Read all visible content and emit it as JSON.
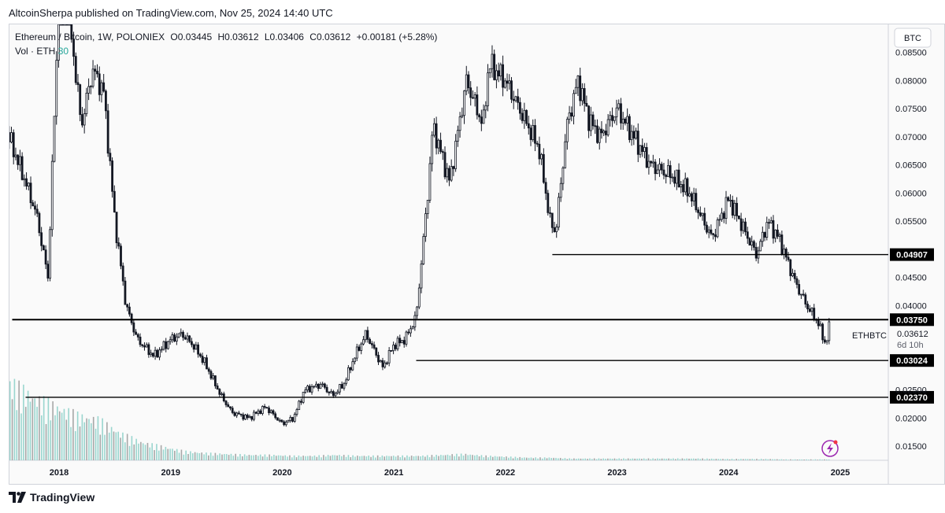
{
  "header": {
    "published_by": "AltcoinSherpa published on TradingView.com, Nov 25, 2024 14:40 UTC"
  },
  "legend": {
    "symbol": "Ethereum / Bitcoin, 1W, POLONIEX",
    "open": "O0.03445",
    "high": "H0.03612",
    "low": "L0.03406",
    "close": "C0.03612",
    "change": "+0.00181 (+5.28%)",
    "volume_label": "Vol · ETH",
    "volume_value": "30"
  },
  "footer": {
    "brand": "TradingView"
  },
  "colors": {
    "candle": "#131722",
    "volume": "#9ad6cf",
    "line": "#000000",
    "label_bg": "#000000",
    "scale_text": "#131722",
    "lightning": "#9c27b0"
  },
  "chart_data": {
    "type": "line",
    "title": "Ethereum / Bitcoin, 1W, POLONIEX",
    "ylim": [
      0.0125,
      0.09
    ],
    "y_unit_badge": "BTC",
    "y_ticks": [
      "0.08500",
      "0.08000",
      "0.07500",
      "0.07000",
      "0.06500",
      "0.06000",
      "0.05500",
      "0.04500",
      "0.04000",
      "0.02500",
      "0.02000",
      "0.01500"
    ],
    "x_ticks": [
      "2018",
      "2019",
      "2020",
      "2021",
      "2022",
      "2023",
      "2024",
      "2025"
    ],
    "series": [
      {
        "x": [
          2017.4,
          2017.55,
          2017.7,
          2017.8,
          2017.9,
          2018.0,
          2018.05,
          2018.1,
          2018.2,
          2018.3,
          2018.4,
          2018.5,
          2018.6,
          2018.7,
          2018.85,
          2019.0,
          2019.1,
          2019.2,
          2019.3,
          2019.45,
          2019.55,
          2019.7,
          2019.85,
          2020.0,
          2020.1,
          2020.2,
          2020.35,
          2020.45,
          2020.55,
          2020.65,
          2020.75,
          2020.9,
          2021.0,
          2021.1,
          2021.2,
          2021.3,
          2021.35,
          2021.5,
          2021.65,
          2021.8,
          2021.85,
          2022.0,
          2022.1,
          2022.2,
          2022.3,
          2022.4,
          2022.45,
          2022.55,
          2022.65,
          2022.75,
          2022.85,
          2023.0,
          2023.15,
          2023.3,
          2023.5,
          2023.65,
          2023.85,
          2024.0,
          2024.15,
          2024.25,
          2024.35,
          2024.45,
          2024.6,
          2024.7,
          2024.8,
          2024.87,
          2024.9
        ],
        "values": [
          0.079,
          0.07,
          0.062,
          0.056,
          0.045,
          0.095,
          0.1,
          0.09,
          0.072,
          0.082,
          0.078,
          0.055,
          0.04,
          0.034,
          0.031,
          0.034,
          0.035,
          0.033,
          0.03,
          0.024,
          0.021,
          0.02,
          0.022,
          0.019,
          0.02,
          0.025,
          0.026,
          0.024,
          0.026,
          0.031,
          0.035,
          0.029,
          0.033,
          0.034,
          0.038,
          0.059,
          0.072,
          0.062,
          0.08,
          0.072,
          0.083,
          0.08,
          0.076,
          0.072,
          0.068,
          0.055,
          0.053,
          0.072,
          0.08,
          0.073,
          0.07,
          0.075,
          0.07,
          0.065,
          0.063,
          0.06,
          0.052,
          0.059,
          0.053,
          0.049,
          0.055,
          0.052,
          0.044,
          0.04,
          0.037,
          0.033,
          0.0361
        ]
      }
    ],
    "volume_relative": [
      0.9,
      0.85,
      0.7,
      0.6,
      0.5,
      0.45,
      0.3,
      0.2,
      0.15,
      0.1,
      0.08,
      0.07,
      0.06,
      0.06,
      0.05,
      0.05,
      0.06,
      0.05,
      0.05,
      0.05,
      0.05,
      0.06,
      0.07,
      0.05,
      0.04,
      0.03,
      0.03,
      0.02,
      0.02,
      0.02,
      0.02,
      0.02,
      0.02,
      0.02,
      0.015,
      0.015,
      0.015,
      0.01,
      0.01,
      0.01
    ],
    "horizontal_levels": [
      {
        "value": 0.04907,
        "label": "0.04907",
        "from": 2022.42
      },
      {
        "value": 0.0375,
        "label": "0.03750",
        "from": 2017.58,
        "thick": true
      },
      {
        "value": 0.03024,
        "label": "0.03024",
        "from": 2021.2
      },
      {
        "value": 0.0237,
        "label": "0.02370",
        "from": 2017.7
      }
    ],
    "last_price": {
      "symbol": "ETHBTC",
      "value": "0.03612",
      "countdown": "6d 10h"
    }
  }
}
